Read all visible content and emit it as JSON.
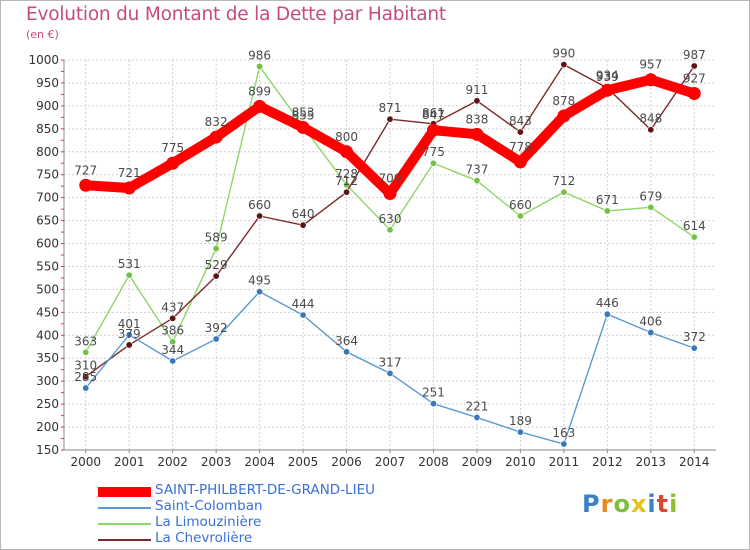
{
  "title": "Evolution du Montant de la Dette par Habitant",
  "unit": "(en €)",
  "logo": {
    "letters": [
      "P",
      "r",
      "o",
      "x",
      "i",
      "t",
      "i"
    ],
    "colors": [
      "#3b82c4",
      "#e88a1a",
      "#7fbf3f",
      "#e8c21a",
      "#3b82c4",
      "#d84a2a",
      "#8fbf2f"
    ]
  },
  "chart_data": {
    "type": "line",
    "x": [
      "2000",
      "2001",
      "2002",
      "2003",
      "2004",
      "2005",
      "2006",
      "2007",
      "2008",
      "2009",
      "2010",
      "2011",
      "2012",
      "2013",
      "2014"
    ],
    "ylim": [
      150,
      1000
    ],
    "yticks": [
      150,
      200,
      250,
      300,
      350,
      400,
      450,
      500,
      550,
      600,
      650,
      700,
      750,
      800,
      850,
      900,
      950,
      1000
    ],
    "grid": true,
    "legend_position": "bottom-left",
    "series": [
      {
        "name": "SAINT-PHILBERT-DE-GRAND-LIEU",
        "color": "#ff0000",
        "marker": "#e80000",
        "values": [
          727,
          721,
          775,
          832,
          899,
          853,
          800,
          709,
          847,
          838,
          778,
          878,
          934,
          957,
          927
        ]
      },
      {
        "name": "Saint-Colomban",
        "color": "#5a9bd4",
        "marker": "#3a78b8",
        "values": [
          285,
          401,
          344,
          392,
          495,
          444,
          364,
          317,
          251,
          221,
          189,
          163,
          446,
          406,
          372
        ]
      },
      {
        "name": "La Limouzinière",
        "color": "#8ed66a",
        "marker": "#73c247",
        "values": [
          363,
          531,
          386,
          589,
          986,
          855,
          728,
          630,
          775,
          737,
          660,
          712,
          671,
          679,
          614
        ]
      },
      {
        "name": "La Chevrolière",
        "color": "#7a2a2a",
        "marker": "#5c1414",
        "values": [
          310,
          379,
          437,
          529,
          660,
          640,
          712,
          871,
          861,
          911,
          843,
          990,
          939,
          848,
          987
        ]
      }
    ]
  }
}
